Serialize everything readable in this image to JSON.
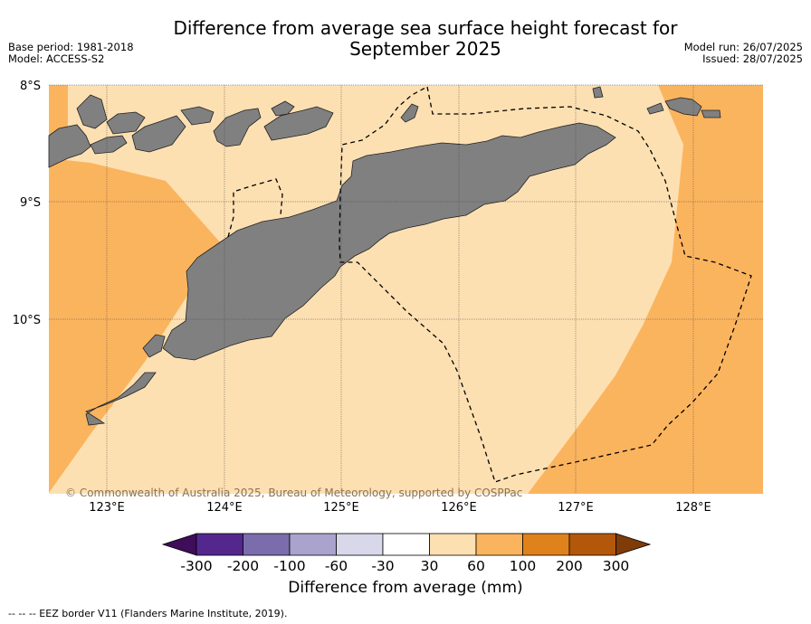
{
  "title_line1": "Difference from average sea surface height forecast for",
  "title_line2": "September 2025",
  "base_period": "Base period: 1981-2018",
  "model": "Model: ACCESS-S2",
  "model_run": "Model run: 26/07/2025",
  "issued": "Issued: 28/07/2025",
  "copyright": "© Commonwealth of Australia 2025, Bureau of Meteorology, supported by COSPPac",
  "lat_labels": [
    "8°S",
    "9°S",
    "10°S"
  ],
  "lon_labels": [
    "123°E",
    "124°E",
    "125°E",
    "126°E",
    "127°E",
    "128°E"
  ],
  "colorbar": {
    "title": "Difference from average (mm)",
    "ticks": [
      "-300",
      "-200",
      "-100",
      "-60",
      "-30",
      "30",
      "60",
      "100",
      "200",
      "300"
    ],
    "colors": [
      "#3f0d5a",
      "#54278f",
      "#7b6dab",
      "#a9a3cd",
      "#d8d8ea",
      "#ffffff",
      "#fde0b2",
      "#fbb45e",
      "#e0821b",
      "#b3580a",
      "#7f3b08"
    ]
  },
  "legend_colors": {
    "land": "#808080",
    "class_30_60": "#fde0b2",
    "class_60_100": "#fbb45e"
  },
  "footnote": "--  --  -- EEZ border V11 (Flanders Marine Institute, 2019)."
}
